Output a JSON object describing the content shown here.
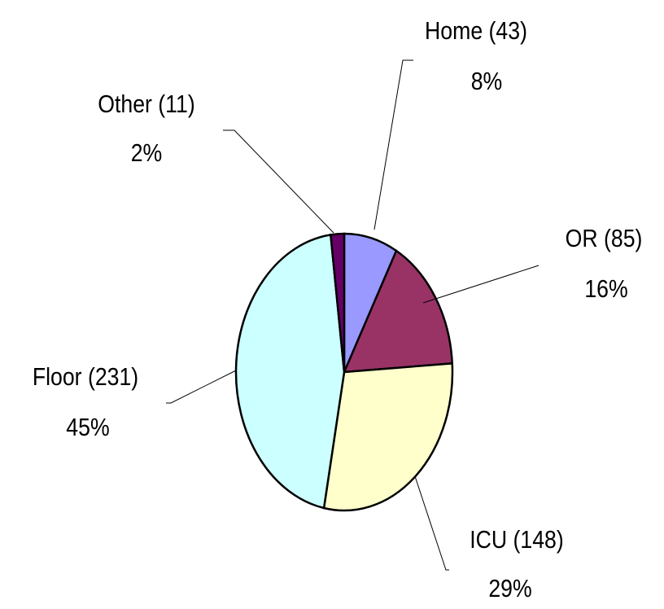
{
  "chart_data": {
    "type": "pie",
    "categories": [
      "Home (43)",
      "OR (85)",
      "ICU (148)",
      "Floor (231)",
      "Other (11)"
    ],
    "values": [
      8,
      16,
      29,
      45,
      2
    ],
    "value_labels": [
      "8%",
      "16%",
      "29%",
      "45%",
      "2%"
    ],
    "colors": [
      "#9999ff",
      "#993366",
      "#ffffcc",
      "#ccffff",
      "#660066"
    ]
  }
}
